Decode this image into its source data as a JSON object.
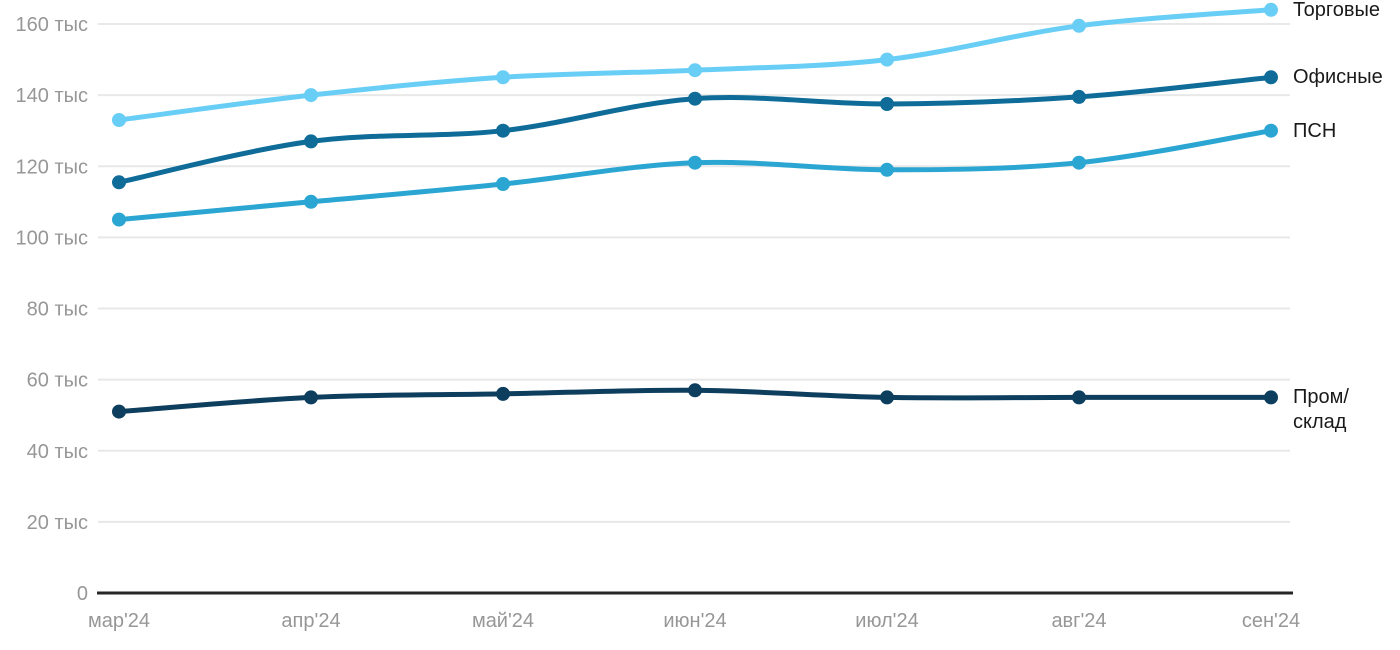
{
  "chart_data": {
    "type": "line",
    "categories": [
      "мар'24",
      "апр'24",
      "май'24",
      "июн'24",
      "июл'24",
      "авг'24",
      "сен'24"
    ],
    "series": [
      {
        "name": "Торговые",
        "color": "#69CEF5",
        "values": [
          133,
          140,
          145,
          147,
          150,
          159.5,
          164
        ],
        "label_lines": [
          "Торговые"
        ]
      },
      {
        "name": "Офисные",
        "color": "#0F6C99",
        "values": [
          115.5,
          127,
          130,
          139,
          137.5,
          139.5,
          145
        ],
        "label_lines": [
          "Офисные"
        ]
      },
      {
        "name": "ПСН",
        "color": "#2BA6D2",
        "values": [
          105,
          110,
          115,
          121,
          119,
          121,
          130
        ],
        "label_lines": [
          "ПСН"
        ]
      },
      {
        "name": "Пром/склад",
        "color": "#0E3E5E",
        "values": [
          51,
          55,
          56,
          57,
          55,
          55,
          55
        ],
        "label_lines": [
          "Пром/",
          "склад"
        ]
      }
    ],
    "y_axis": {
      "min": 0,
      "max": 160,
      "ticks": [
        0,
        20,
        40,
        60,
        80,
        100,
        120,
        140,
        160
      ],
      "tick_labels": [
        "0",
        "20 тыс",
        "40 тыс",
        "60 тыс",
        "80 тыс",
        "100 тыс",
        "120 тыс",
        "140 тыс",
        "160 тыс"
      ]
    },
    "xlabel": "",
    "ylabel": "",
    "title": "",
    "grid": true,
    "legend_position": "right",
    "colors": {
      "grid": "#E8E8E8",
      "axis": "#262626",
      "tick_text": "#979797",
      "series_label_text": "#1A1A1A",
      "background": "#FFFFFF"
    }
  }
}
